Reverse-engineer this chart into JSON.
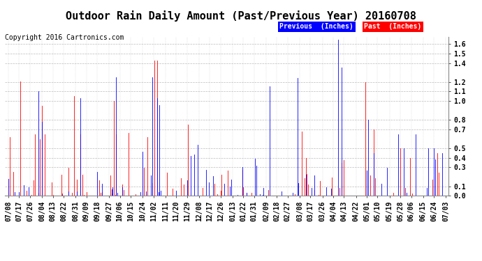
{
  "title": "Outdoor Rain Daily Amount (Past/Previous Year) 20160708",
  "copyright": "Copyright 2016 Cartronics.com",
  "yticks": [
    0.0,
    0.1,
    0.3,
    0.4,
    0.5,
    0.7,
    0.8,
    1.0,
    1.1,
    1.2,
    1.4,
    1.5,
    1.6
  ],
  "ymax": 1.68,
  "ymin": 0.0,
  "legend_labels": [
    "Previous  (Inches)",
    "Past  (Inches)"
  ],
  "legend_colors": [
    "#0000FF",
    "#FF0000"
  ],
  "background_color": "#ffffff",
  "grid_color": "#aaaaaa",
  "title_fontsize": 11,
  "copyright_fontsize": 7,
  "tick_label_fontsize": 7,
  "x_dates": [
    "07/08",
    "07/17",
    "07/26",
    "08/04",
    "08/13",
    "08/22",
    "08/31",
    "09/09",
    "09/18",
    "09/27",
    "10/06",
    "10/15",
    "10/24",
    "11/02",
    "11/11",
    "11/20",
    "11/29",
    "12/08",
    "12/17",
    "12/26",
    "01/13",
    "01/22",
    "01/31",
    "02/09",
    "02/18",
    "02/27",
    "03/08",
    "03/17",
    "03/26",
    "04/04",
    "04/13",
    "04/22",
    "05/01",
    "05/10",
    "05/19",
    "05/28",
    "06/06",
    "06/15",
    "06/24",
    "07/03"
  ],
  "num_points": 366,
  "previous_color": "#0000FF",
  "past_color": "#FF0000"
}
